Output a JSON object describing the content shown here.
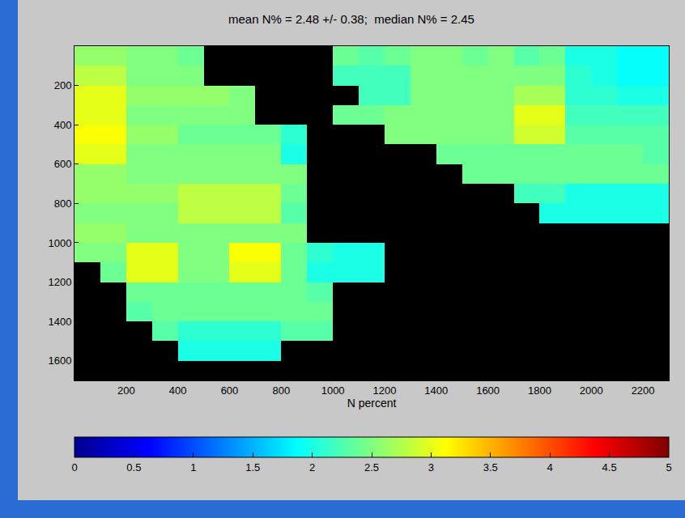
{
  "chart_data": {
    "type": "heatmap",
    "title": "mean N% = 2.48 +/- 0.38;  median N% = 2.45",
    "x_label": "N percent",
    "x": [
      50,
      150,
      250,
      350,
      450,
      550,
      650,
      750,
      850,
      950,
      1050,
      1150,
      1250,
      1350,
      1450,
      1550,
      1650,
      1750,
      1850,
      1950,
      2050,
      2150,
      2250
    ],
    "y": [
      50,
      150,
      250,
      350,
      450,
      550,
      650,
      750,
      850,
      950,
      1050,
      1150,
      1250,
      1350,
      1450,
      1550,
      1650
    ],
    "xlim": [
      0,
      2300
    ],
    "ylim": [
      1700,
      0
    ],
    "xticks": [
      200,
      400,
      600,
      800,
      1000,
      1200,
      1400,
      1600,
      1800,
      2000,
      2200
    ],
    "yticks": [
      200,
      400,
      600,
      800,
      1000,
      1200,
      1400,
      1600
    ],
    "cells": [
      [
        2.6,
        2.6,
        2.5,
        2.5,
        2.4,
        null,
        null,
        null,
        null,
        null,
        2.4,
        2.3,
        2.4,
        2.5,
        2.5,
        2.4,
        2.5,
        2.3,
        2.4,
        2.0,
        2.0,
        1.9,
        1.9
      ],
      [
        2.8,
        2.8,
        2.5,
        2.5,
        2.5,
        null,
        null,
        null,
        null,
        null,
        2.2,
        2.2,
        2.2,
        2.5,
        2.5,
        2.5,
        2.5,
        2.5,
        2.5,
        2.1,
        2.0,
        1.9,
        1.9
      ],
      [
        3.0,
        3.0,
        2.6,
        2.6,
        2.6,
        2.6,
        2.5,
        null,
        null,
        null,
        null,
        2.2,
        2.2,
        2.5,
        2.5,
        2.5,
        2.5,
        2.7,
        2.7,
        2.1,
        2.1,
        2.0,
        2.0
      ],
      [
        3.0,
        3.0,
        2.5,
        2.5,
        2.5,
        2.5,
        2.5,
        null,
        null,
        null,
        2.4,
        2.4,
        2.5,
        2.5,
        2.5,
        2.5,
        2.5,
        3.0,
        3.0,
        2.2,
        2.2,
        2.2,
        2.2
      ],
      [
        3.1,
        3.1,
        2.6,
        2.6,
        2.4,
        2.4,
        2.4,
        2.4,
        2.1,
        null,
        null,
        null,
        2.5,
        2.5,
        2.5,
        2.5,
        2.5,
        2.9,
        2.9,
        2.3,
        2.3,
        2.3,
        2.3
      ],
      [
        3.0,
        3.0,
        2.5,
        2.5,
        2.5,
        2.5,
        2.5,
        2.5,
        2.0,
        null,
        null,
        null,
        null,
        null,
        2.4,
        2.4,
        2.4,
        2.4,
        2.4,
        2.4,
        2.4,
        2.4,
        2.3
      ],
      [
        2.6,
        2.6,
        2.5,
        2.5,
        2.5,
        2.5,
        2.5,
        2.5,
        2.5,
        null,
        null,
        null,
        null,
        null,
        null,
        2.4,
        2.4,
        2.4,
        2.4,
        2.4,
        2.4,
        2.4,
        2.4
      ],
      [
        2.6,
        2.6,
        2.6,
        2.6,
        2.8,
        2.8,
        2.8,
        2.8,
        2.4,
        null,
        null,
        null,
        null,
        null,
        null,
        null,
        null,
        2.2,
        2.2,
        2.0,
        2.0,
        2.0,
        2.0
      ],
      [
        2.5,
        2.5,
        2.5,
        2.5,
        2.8,
        2.8,
        2.8,
        2.8,
        2.3,
        null,
        null,
        null,
        null,
        null,
        null,
        null,
        null,
        null,
        2.0,
        2.0,
        2.0,
        2.0,
        2.0
      ],
      [
        2.6,
        2.6,
        2.5,
        2.5,
        2.5,
        2.5,
        2.5,
        2.5,
        2.5,
        null,
        null,
        null,
        null,
        null,
        null,
        null,
        null,
        null,
        null,
        null,
        null,
        null,
        null
      ],
      [
        2.5,
        2.5,
        3.0,
        3.0,
        2.5,
        2.5,
        3.1,
        3.1,
        2.4,
        2.1,
        2.0,
        2.0,
        null,
        null,
        null,
        null,
        null,
        null,
        null,
        null,
        null,
        null,
        null
      ],
      [
        null,
        2.4,
        3.0,
        3.0,
        2.5,
        2.5,
        3.0,
        3.0,
        2.4,
        2.0,
        2.0,
        2.0,
        null,
        null,
        null,
        null,
        null,
        null,
        null,
        null,
        null,
        null,
        null
      ],
      [
        null,
        null,
        2.4,
        2.4,
        2.4,
        2.4,
        2.4,
        2.4,
        2.4,
        2.3,
        null,
        null,
        null,
        null,
        null,
        null,
        null,
        null,
        null,
        null,
        null,
        null,
        null
      ],
      [
        null,
        null,
        2.3,
        2.4,
        2.4,
        2.4,
        2.4,
        2.4,
        2.4,
        2.4,
        null,
        null,
        null,
        null,
        null,
        null,
        null,
        null,
        null,
        null,
        null,
        null,
        null
      ],
      [
        null,
        null,
        null,
        2.3,
        2.1,
        2.1,
        2.1,
        2.1,
        2.3,
        2.3,
        null,
        null,
        null,
        null,
        null,
        null,
        null,
        null,
        null,
        null,
        null,
        null,
        null
      ],
      [
        null,
        null,
        null,
        null,
        2.0,
        2.0,
        2.0,
        2.0,
        null,
        null,
        null,
        null,
        null,
        null,
        null,
        null,
        null,
        null,
        null,
        null,
        null,
        null,
        null
      ],
      [
        null,
        null,
        null,
        null,
        null,
        null,
        null,
        null,
        null,
        null,
        null,
        null,
        null,
        null,
        null,
        null,
        null,
        null,
        null,
        null,
        null,
        null,
        null
      ]
    ],
    "colorbar_range": [
      0,
      5
    ],
    "colorbar_ticks": [
      0,
      0.5,
      1,
      1.5,
      2,
      2.5,
      3,
      3.5,
      4,
      4.5,
      5
    ]
  }
}
